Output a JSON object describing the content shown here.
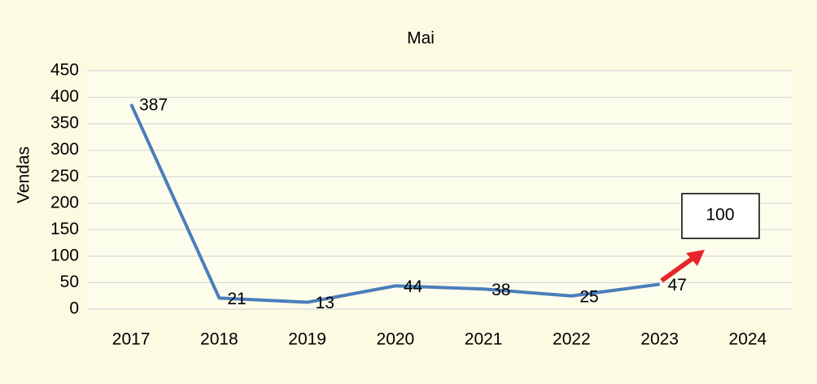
{
  "chart_data": {
    "type": "line",
    "title": "Mai",
    "y_label": "Vendas",
    "categories": [
      "2017",
      "2018",
      "2019",
      "2020",
      "2021",
      "2022",
      "2023",
      "2024"
    ],
    "values": [
      387,
      21,
      13,
      44,
      38,
      25,
      47,
      null
    ],
    "color": "#4a7ebb",
    "ylim": [
      0,
      450
    ],
    "yticks": [
      0,
      50,
      100,
      150,
      200,
      250,
      300,
      350,
      400,
      450
    ],
    "grid": true,
    "annotations": [
      "100"
    ]
  }
}
